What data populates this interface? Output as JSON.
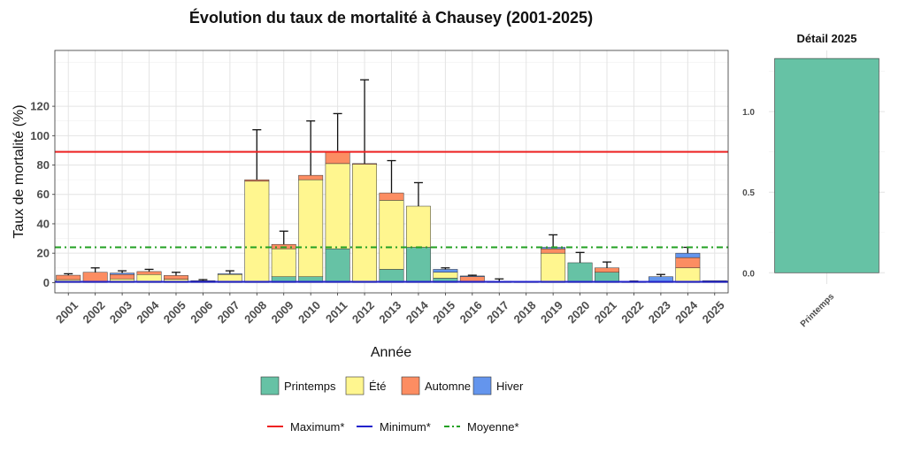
{
  "chart_data": [
    {
      "type": "bar",
      "stacked": true,
      "title": "Évolution du taux de mortalité à Chausey (2001-2025)",
      "xlabel": "Année",
      "ylabel": "Taux de mortalité (%)",
      "ylim": [
        -7,
        158
      ],
      "yticks": [
        0,
        20,
        40,
        60,
        80,
        100,
        120
      ],
      "grid": true,
      "categories": [
        "2001",
        "2002",
        "2003",
        "2004",
        "2005",
        "2006",
        "2007",
        "2008",
        "2009",
        "2010",
        "2011",
        "2012",
        "2013",
        "2014",
        "2015",
        "2016",
        "2017",
        "2018",
        "2019",
        "2020",
        "2021",
        "2022",
        "2023",
        "2024",
        "2025"
      ],
      "series": [
        {
          "name": "Printemps",
          "color": "#66c2a5",
          "values": [
            0.5,
            0,
            0.5,
            0.5,
            0.3,
            0.3,
            0,
            0,
            4,
            4,
            23,
            0,
            9,
            24,
            3,
            0,
            0,
            0,
            0,
            13.5,
            7,
            0,
            0,
            0,
            1.3
          ]
        },
        {
          "name": "Été",
          "color": "#fff68f",
          "values": [
            1.5,
            0,
            2,
            5,
            2,
            0,
            5.5,
            69,
            19,
            66,
            58,
            80.5,
            47,
            28,
            4,
            1,
            0,
            0,
            20,
            0,
            0,
            0,
            0,
            10,
            0
          ]
        },
        {
          "name": "Automne",
          "color": "#fc8d62",
          "values": [
            3,
            7,
            3,
            2,
            2.5,
            0,
            0,
            1,
            3,
            3,
            8,
            0.5,
            5,
            0,
            0,
            3,
            0,
            0,
            3,
            0,
            3,
            0,
            0,
            7,
            0
          ]
        },
        {
          "name": "Hiver",
          "color": "#6495ed",
          "values": [
            0,
            0,
            1,
            0,
            0,
            1,
            0.5,
            0,
            0,
            0,
            0,
            0,
            0,
            0,
            2,
            0.5,
            1,
            0.5,
            1,
            0,
            0,
            0.5,
            4,
            3,
            0
          ]
        }
      ],
      "error_upper": [
        6,
        10,
        8,
        9,
        7,
        2,
        8,
        104,
        35,
        110,
        115,
        138,
        83,
        68,
        10,
        5,
        2.5,
        0,
        32.5,
        20.5,
        14,
        1,
        5.5,
        24,
        0
      ],
      "reference_lines": [
        {
          "name": "Maximum*",
          "value": 89,
          "color": "#ee2222",
          "style": "solid"
        },
        {
          "name": "Minimum*",
          "value": 0.5,
          "color": "#2222cc",
          "style": "solid"
        },
        {
          "name": "Moyenne*",
          "value": 24,
          "color": "#22a022",
          "style": "dashdot"
        }
      ],
      "legend": {
        "position": "bottom",
        "fill_items": [
          "Printemps",
          "Été",
          "Automne",
          "Hiver"
        ],
        "line_items": [
          "Maximum*",
          "Minimum*",
          "Moyenne*"
        ]
      }
    },
    {
      "type": "bar",
      "title": "Détail 2025",
      "categories": [
        "Printemps"
      ],
      "values": [
        1.33
      ],
      "color": "#66c2a5",
      "ylim": [
        -0.07,
        1.38
      ],
      "yticks": [
        0.0,
        0.5,
        1.0
      ],
      "grid": true
    }
  ]
}
